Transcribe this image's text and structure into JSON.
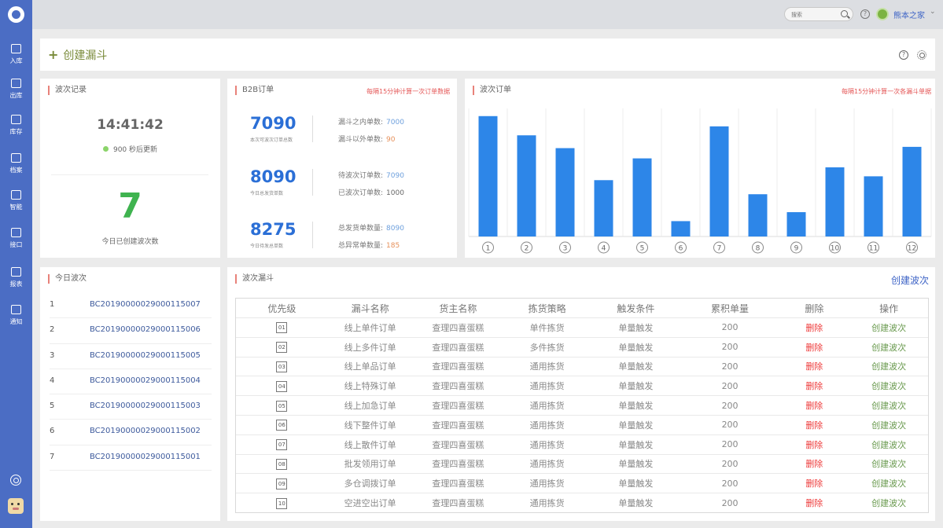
{
  "sidebar": {
    "items": [
      {
        "label": "入库",
        "icon": "inbound-icon"
      },
      {
        "label": "出库",
        "icon": "outbound-icon"
      },
      {
        "label": "库存",
        "icon": "inventory-icon"
      },
      {
        "label": "档案",
        "icon": "archive-icon"
      },
      {
        "label": "智能",
        "icon": "smart-icon"
      },
      {
        "label": "接口",
        "icon": "interface-icon"
      },
      {
        "label": "报表",
        "icon": "report-icon"
      },
      {
        "label": "通知",
        "icon": "bell-icon"
      }
    ]
  },
  "topbar": {
    "search_placeholder": "搜索",
    "username": "熊本之家"
  },
  "header": {
    "create_funnel": "创建漏斗"
  },
  "wave_record": {
    "title": "波次记录",
    "time": "14:41:42",
    "refresh_text": "900 秒后更新",
    "count": "7",
    "count_caption": "今日已创建波次数"
  },
  "b2b": {
    "title": "B2B订单",
    "note": "每隔15分钟计算一次订单数据",
    "blocks": [
      {
        "value": "7090",
        "caption": "本次可波次订单总数",
        "rows": [
          {
            "label": "漏斗之内单数:",
            "value": "7000"
          },
          {
            "label": "漏斗以外单数:",
            "value": "90"
          }
        ]
      },
      {
        "value": "8090",
        "caption": "今日总发货单数",
        "rows": [
          {
            "label": "待波次订单数:",
            "value": "7090"
          },
          {
            "label": "已波次订单数:",
            "value": "1000"
          }
        ]
      },
      {
        "value": "8275",
        "caption": "今日待发总单数",
        "rows": [
          {
            "label": "总发货单数量:",
            "value": "8090"
          },
          {
            "label": "总异常单数量:",
            "value": "185"
          }
        ]
      }
    ]
  },
  "wave_orders": {
    "title": "波次订单",
    "note": "每隔15分钟计算一次各漏斗单据"
  },
  "chart_data": {
    "type": "bar",
    "categories": [
      "1",
      "2",
      "3",
      "4",
      "5",
      "6",
      "7",
      "8",
      "9",
      "10",
      "11",
      "12"
    ],
    "values": [
      94,
      79,
      69,
      44,
      61,
      12,
      86,
      33,
      19,
      54,
      47,
      70
    ],
    "ylim": [
      0,
      100
    ],
    "grid": true,
    "color": "#2d86e8"
  },
  "today_waves": {
    "title": "今日波次",
    "items": [
      {
        "index": "1",
        "code": "BC20190000029000115007"
      },
      {
        "index": "2",
        "code": "BC20190000029000115006"
      },
      {
        "index": "3",
        "code": "BC20190000029000115005"
      },
      {
        "index": "4",
        "code": "BC20190000029000115004"
      },
      {
        "index": "5",
        "code": "BC20190000029000115003"
      },
      {
        "index": "6",
        "code": "BC20190000029000115002"
      },
      {
        "index": "7",
        "code": "BC20190000029000115001"
      }
    ]
  },
  "funnel": {
    "title": "波次漏斗",
    "create_wave": "创建波次",
    "headers": [
      "优先级",
      "漏斗名称",
      "货主名称",
      "拣货策略",
      "触发条件",
      "累积单量",
      "删除",
      "操作"
    ],
    "rows": [
      {
        "priority": "01",
        "name": "线上单件订单",
        "owner": "查理四喜蛋糕",
        "strategy": "单件拣货",
        "trigger": "单量触发",
        "qty": "200",
        "del": "删除",
        "op": "创建波次"
      },
      {
        "priority": "02",
        "name": "线上多件订单",
        "owner": "查理四喜蛋糕",
        "strategy": "多件拣货",
        "trigger": "单量触发",
        "qty": "200",
        "del": "删除",
        "op": "创建波次"
      },
      {
        "priority": "03",
        "name": "线上单品订单",
        "owner": "查理四喜蛋糕",
        "strategy": "通用拣货",
        "trigger": "单量触发",
        "qty": "200",
        "del": "删除",
        "op": "创建波次"
      },
      {
        "priority": "04",
        "name": "线上特殊订单",
        "owner": "查理四喜蛋糕",
        "strategy": "通用拣货",
        "trigger": "单量触发",
        "qty": "200",
        "del": "删除",
        "op": "创建波次"
      },
      {
        "priority": "05",
        "name": "线上加急订单",
        "owner": "查理四喜蛋糕",
        "strategy": "通用拣货",
        "trigger": "单量触发",
        "qty": "200",
        "del": "删除",
        "op": "创建波次"
      },
      {
        "priority": "06",
        "name": "线下整件订单",
        "owner": "查理四喜蛋糕",
        "strategy": "通用拣货",
        "trigger": "单量触发",
        "qty": "200",
        "del": "删除",
        "op": "创建波次"
      },
      {
        "priority": "07",
        "name": "线上散件订单",
        "owner": "查理四喜蛋糕",
        "strategy": "通用拣货",
        "trigger": "单量触发",
        "qty": "200",
        "del": "删除",
        "op": "创建波次"
      },
      {
        "priority": "08",
        "name": "批发领用订单",
        "owner": "查理四喜蛋糕",
        "strategy": "通用拣货",
        "trigger": "单量触发",
        "qty": "200",
        "del": "删除",
        "op": "创建波次"
      },
      {
        "priority": "09",
        "name": "多仓调拨订单",
        "owner": "查理四喜蛋糕",
        "strategy": "通用拣货",
        "trigger": "单量触发",
        "qty": "200",
        "del": "删除",
        "op": "创建波次"
      },
      {
        "priority": "10",
        "name": "空进空出订单",
        "owner": "查理四喜蛋糕",
        "strategy": "通用拣货",
        "trigger": "单量触发",
        "qty": "200",
        "del": "删除",
        "op": "创建波次"
      }
    ]
  }
}
